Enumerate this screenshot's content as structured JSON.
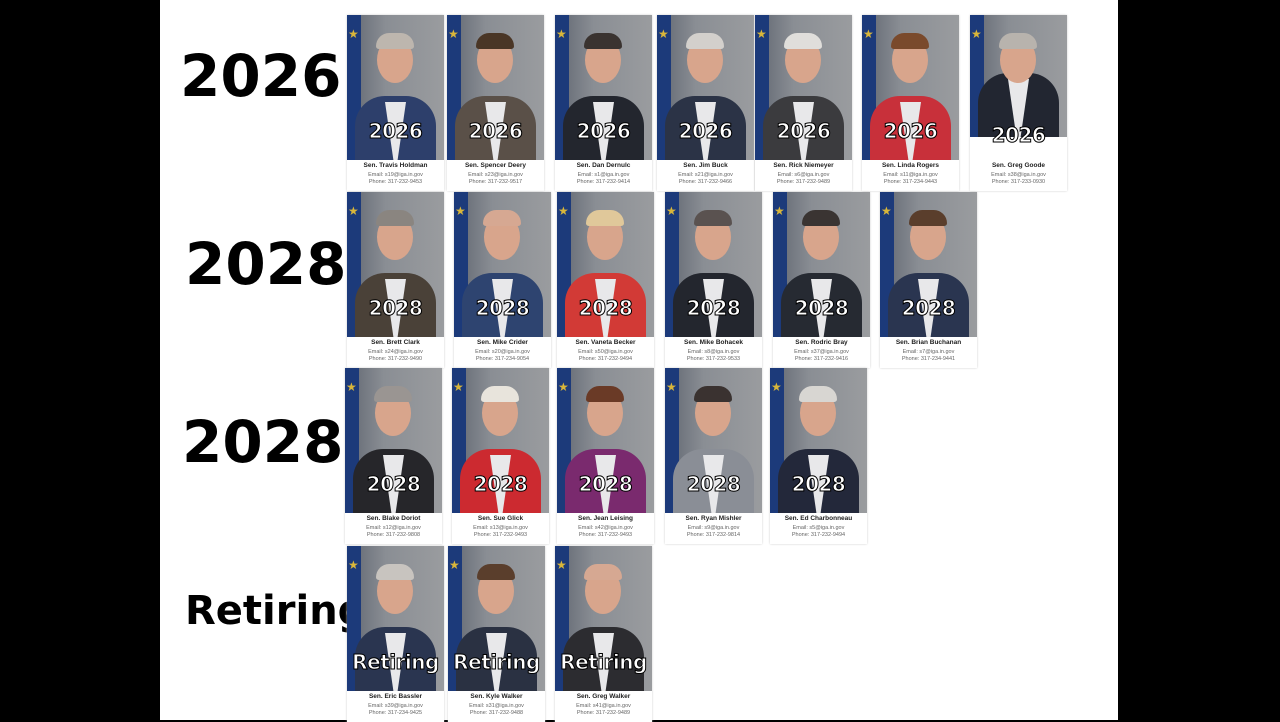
{
  "rows": [
    {
      "label": "2026",
      "overlay": "2026",
      "senators": [
        {
          "name": "Sen. Travis Holdman",
          "email": "Email: s19@iga.in.gov",
          "phone": "Phone: 317-232-9453",
          "suit": "#2d3f6b",
          "hair": "#bdb6ae"
        },
        {
          "name": "Sen. Spencer Deery",
          "email": "Email: s23@iga.in.gov",
          "phone": "Phone: 317-232-9517",
          "suit": "#5a5048",
          "hair": "#4a3626"
        },
        {
          "name": "Sen. Dan Dernulc",
          "email": "Email: s1@iga.in.gov",
          "phone": "Phone: 317-232-9414",
          "suit": "#23262e",
          "hair": "#3a3330"
        },
        {
          "name": "Sen. Jim Buck",
          "email": "Email: s21@iga.in.gov",
          "phone": "Phone: 317-232-9466",
          "suit": "#2b3346",
          "hair": "#d3d0cc"
        },
        {
          "name": "Sen. Rick Niemeyer",
          "email": "Email: s6@iga.in.gov",
          "phone": "Phone: 317-232-9489",
          "suit": "#3b3b3e",
          "hair": "#e0dedb"
        },
        {
          "name": "Sen. Linda Rogers",
          "email": "Email: s11@iga.in.gov",
          "phone": "Phone: 317-234-9443",
          "suit": "#c8303a",
          "hair": "#7a4a2c"
        },
        {
          "name": "Sen. Greg Goode",
          "email": "Email: s38@iga.in.gov",
          "phone": "Phone: 317-233-0930",
          "suit": "#222631",
          "hair": "#b8b3ad"
        }
      ]
    },
    {
      "label": "2028",
      "overlay": "2028",
      "senators": [
        {
          "name": "Sen. Brett Clark",
          "email": "Email: s24@iga.in.gov",
          "phone": "Phone: 317-232-9490",
          "suit": "#4a4138",
          "hair": "#8a8580"
        },
        {
          "name": "Sen. Mike Crider",
          "email": "Email: s20@iga.in.gov",
          "phone": "Phone: 317-234-9054",
          "suit": "#2e4470",
          "hair": "#d6a892"
        },
        {
          "name": "Sen. Vaneta Becker",
          "email": "Email: s50@iga.in.gov",
          "phone": "Phone: 317-232-9494",
          "suit": "#d23a36",
          "hair": "#e0c89a"
        },
        {
          "name": "Sen. Mike Bohacek",
          "email": "Email: s8@iga.in.gov",
          "phone": "Phone: 317-232-9533",
          "suit": "#23262e",
          "hair": "#5a5250"
        },
        {
          "name": "Sen. Rodric Bray",
          "email": "Email: s37@iga.in.gov",
          "phone": "Phone: 317-232-9416",
          "suit": "#262a32",
          "hair": "#3a3432"
        },
        {
          "name": "Sen. Brian Buchanan",
          "email": "Email: s7@iga.in.gov",
          "phone": "Phone: 317-234-9441",
          "suit": "#2a3550",
          "hair": "#5a3e2c"
        }
      ]
    },
    {
      "label": "2028",
      "overlay": "2028",
      "senators": [
        {
          "name": "Sen. Blake Doriot",
          "email": "Email: s12@iga.in.gov",
          "phone": "Phone: 317-232-9808",
          "suit": "#26262a",
          "hair": "#9a9592"
        },
        {
          "name": "Sen. Sue Glick",
          "email": "Email: s13@iga.in.gov",
          "phone": "Phone: 317-232-9493",
          "suit": "#cc2a30",
          "hair": "#e8e4dc"
        },
        {
          "name": "Sen. Jean Leising",
          "email": "Email: s42@iga.in.gov",
          "phone": "Phone: 317-232-9493",
          "suit": "#7a2a6e",
          "hair": "#6a3a26"
        },
        {
          "name": "Sen. Ryan Mishler",
          "email": "Email: s9@iga.in.gov",
          "phone": "Phone: 317-232-9814",
          "suit": "#8a8e96",
          "hair": "#3a3230"
        },
        {
          "name": "Sen. Ed Charbonneau",
          "email": "Email: s5@iga.in.gov",
          "phone": "Phone: 317-232-9494",
          "suit": "#23283a",
          "hair": "#d8d6d2"
        }
      ]
    },
    {
      "label": "Retiring",
      "overlay": "Retiring",
      "senators": [
        {
          "name": "Sen. Eric Bassler",
          "email": "Email: s39@iga.in.gov",
          "phone": "Phone: 317-234-9425",
          "suit": "#2a3550",
          "hair": "#c8c4bf"
        },
        {
          "name": "Sen. Kyle Walker",
          "email": "Email: s31@iga.in.gov",
          "phone": "Phone: 317-232-9488",
          "suit": "#2a3142",
          "hair": "#5a3e2c"
        },
        {
          "name": "Sen. Greg Walker",
          "email": "Email: s41@iga.in.gov",
          "phone": "Phone: 317-232-9489",
          "suit": "#2c2c30",
          "hair": "#d6a892"
        }
      ]
    }
  ]
}
